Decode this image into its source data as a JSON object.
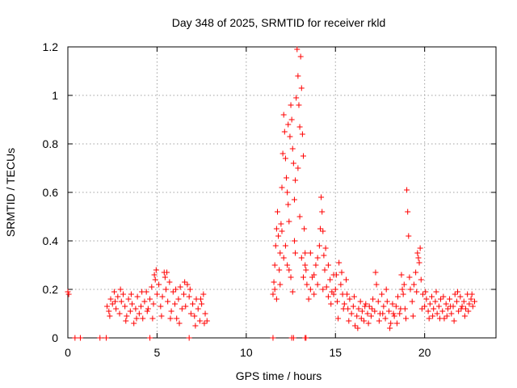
{
  "chart_data": {
    "type": "scatter",
    "title": "Day 348 of 2025, SRMTID for receiver rkld",
    "xlabel": "GPS time / hours",
    "ylabel": "SRMTID / TECUs",
    "xlim": [
      0,
      24
    ],
    "ylim": [
      0,
      1.2
    ],
    "xticks": [
      0,
      5,
      10,
      15,
      20
    ],
    "xtick_labels": [
      "0",
      "5",
      "10",
      "15",
      "20"
    ],
    "yticks": [
      0,
      0.2,
      0.4,
      0.6,
      0.8,
      1.0,
      1.2
    ],
    "ytick_labels": [
      "0",
      "0.2",
      "0.4",
      "0.6",
      "0.8",
      "1",
      "1.2"
    ],
    "grid": true,
    "marker": "plus",
    "color": "#ff0000",
    "series": [
      {
        "name": "SRMTID",
        "points": [
          [
            0.0,
            0.19
          ],
          [
            0.05,
            0.18
          ],
          [
            0.4,
            0.0
          ],
          [
            0.7,
            0.0
          ],
          [
            1.8,
            0.0
          ],
          [
            2.15,
            0.0
          ],
          [
            4.6,
            0.0
          ],
          [
            6.8,
            0.0
          ],
          [
            11.5,
            0.0
          ],
          [
            12.55,
            0.0
          ],
          [
            12.65,
            0.0
          ],
          [
            13.3,
            0.0
          ],
          [
            13.35,
            0.0
          ],
          [
            2.2,
            0.13
          ],
          [
            2.3,
            0.11
          ],
          [
            2.4,
            0.16
          ],
          [
            2.5,
            0.14
          ],
          [
            2.6,
            0.19
          ],
          [
            2.7,
            0.12
          ],
          [
            2.8,
            0.17
          ],
          [
            2.9,
            0.1
          ],
          [
            3.0,
            0.15
          ],
          [
            3.1,
            0.18
          ],
          [
            3.2,
            0.13
          ],
          [
            3.3,
            0.09
          ],
          [
            3.4,
            0.16
          ],
          [
            3.5,
            0.11
          ],
          [
            3.6,
            0.14
          ],
          [
            3.7,
            0.06
          ],
          [
            3.8,
            0.12
          ],
          [
            3.9,
            0.17
          ],
          [
            4.0,
            0.1
          ],
          [
            4.1,
            0.13
          ],
          [
            4.2,
            0.08
          ],
          [
            4.3,
            0.15
          ],
          [
            4.4,
            0.19
          ],
          [
            4.5,
            0.12
          ],
          [
            4.6,
            0.16
          ],
          [
            4.7,
            0.21
          ],
          [
            4.8,
            0.14
          ],
          [
            4.9,
            0.24
          ],
          [
            5.0,
            0.18
          ],
          [
            5.1,
            0.22
          ],
          [
            5.2,
            0.13
          ],
          [
            5.3,
            0.17
          ],
          [
            5.4,
            0.27
          ],
          [
            5.5,
            0.2
          ],
          [
            5.6,
            0.15
          ],
          [
            5.7,
            0.23
          ],
          [
            5.8,
            0.11
          ],
          [
            5.9,
            0.19
          ],
          [
            6.0,
            0.14
          ],
          [
            6.1,
            0.08
          ],
          [
            6.2,
            0.16
          ],
          [
            6.3,
            0.21
          ],
          [
            6.4,
            0.12
          ],
          [
            6.5,
            0.18
          ],
          [
            6.6,
            0.13
          ],
          [
            6.7,
            0.22
          ],
          [
            6.8,
            0.17
          ],
          [
            6.9,
            0.1
          ],
          [
            7.0,
            0.14
          ],
          [
            7.1,
            0.09
          ],
          [
            7.2,
            0.16
          ],
          [
            7.3,
            0.12
          ],
          [
            7.4,
            0.07
          ],
          [
            7.5,
            0.14
          ],
          [
            7.6,
            0.18
          ],
          [
            7.7,
            0.1
          ],
          [
            7.8,
            0.07
          ],
          [
            2.35,
            0.09
          ],
          [
            2.65,
            0.15
          ],
          [
            2.95,
            0.2
          ],
          [
            3.25,
            0.07
          ],
          [
            3.55,
            0.18
          ],
          [
            3.85,
            0.08
          ],
          [
            4.15,
            0.19
          ],
          [
            4.45,
            0.11
          ],
          [
            4.75,
            0.08
          ],
          [
            4.85,
            0.26
          ],
          [
            4.95,
            0.28
          ],
          [
            5.25,
            0.09
          ],
          [
            5.45,
            0.25
          ],
          [
            5.55,
            0.27
          ],
          [
            5.75,
            0.08
          ],
          [
            6.05,
            0.2
          ],
          [
            6.25,
            0.06
          ],
          [
            6.55,
            0.23
          ],
          [
            6.85,
            0.2
          ],
          [
            7.15,
            0.05
          ],
          [
            7.45,
            0.16
          ],
          [
            7.65,
            0.06
          ],
          [
            11.5,
            0.18
          ],
          [
            11.55,
            0.23
          ],
          [
            11.6,
            0.3
          ],
          [
            11.65,
            0.38
          ],
          [
            11.7,
            0.45
          ],
          [
            11.75,
            0.52
          ],
          [
            11.8,
            0.42
          ],
          [
            11.85,
            0.28
          ],
          [
            11.9,
            0.35
          ],
          [
            11.95,
            0.47
          ],
          [
            12.0,
            0.62
          ],
          [
            12.05,
            0.76
          ],
          [
            12.1,
            0.92
          ],
          [
            12.15,
            0.85
          ],
          [
            12.2,
            0.74
          ],
          [
            12.25,
            0.66
          ],
          [
            12.3,
            0.6
          ],
          [
            12.35,
            0.55
          ],
          [
            12.4,
            0.48
          ],
          [
            12.45,
            0.83
          ],
          [
            12.5,
            0.96
          ],
          [
            12.55,
            0.9
          ],
          [
            12.6,
            0.78
          ],
          [
            12.65,
            0.72
          ],
          [
            12.7,
            0.57
          ],
          [
            12.75,
            0.65
          ],
          [
            12.8,
            0.99
          ],
          [
            12.85,
            1.19
          ],
          [
            12.9,
            1.08
          ],
          [
            12.95,
            0.96
          ],
          [
            13.0,
            0.87
          ],
          [
            13.05,
            1.16
          ],
          [
            13.1,
            1.03
          ],
          [
            13.15,
            0.84
          ],
          [
            13.2,
            0.75
          ],
          [
            13.25,
            0.45
          ],
          [
            13.3,
            0.35
          ],
          [
            13.35,
            0.28
          ],
          [
            13.4,
            0.22
          ],
          [
            11.6,
            0.2
          ],
          [
            11.7,
            0.16
          ],
          [
            11.9,
            0.22
          ],
          [
            12.0,
            0.44
          ],
          [
            12.1,
            0.33
          ],
          [
            12.2,
            0.38
          ],
          [
            12.3,
            0.3
          ],
          [
            12.35,
            0.88
          ],
          [
            12.4,
            0.28
          ],
          [
            12.5,
            0.25
          ],
          [
            12.6,
            0.19
          ],
          [
            12.7,
            0.4
          ],
          [
            12.75,
            0.35
          ],
          [
            12.9,
            0.7
          ],
          [
            13.0,
            0.5
          ],
          [
            13.1,
            0.33
          ],
          [
            13.2,
            0.25
          ],
          [
            13.3,
            0.3
          ],
          [
            13.5,
            0.16
          ],
          [
            13.6,
            0.2
          ],
          [
            13.7,
            0.25
          ],
          [
            13.8,
            0.18
          ],
          [
            13.9,
            0.3
          ],
          [
            14.0,
            0.22
          ],
          [
            14.1,
            0.38
          ],
          [
            14.2,
            0.58
          ],
          [
            14.25,
            0.52
          ],
          [
            14.3,
            0.44
          ],
          [
            14.35,
            0.34
          ],
          [
            14.4,
            0.28
          ],
          [
            14.5,
            0.21
          ],
          [
            14.6,
            0.17
          ],
          [
            14.7,
            0.24
          ],
          [
            14.8,
            0.19
          ],
          [
            14.9,
            0.26
          ],
          [
            15.0,
            0.2
          ],
          [
            15.1,
            0.15
          ],
          [
            15.2,
            0.31
          ],
          [
            15.3,
            0.22
          ],
          [
            15.4,
            0.18
          ],
          [
            15.5,
            0.14
          ],
          [
            15.6,
            0.24
          ],
          [
            15.7,
            0.12
          ],
          [
            15.8,
            0.16
          ],
          [
            15.9,
            0.1
          ],
          [
            16.0,
            0.13
          ],
          [
            16.1,
            0.05
          ],
          [
            16.2,
            0.09
          ],
          [
            16.3,
            0.12
          ],
          [
            16.4,
            0.15
          ],
          [
            16.5,
            0.11
          ],
          [
            16.6,
            0.07
          ],
          [
            16.7,
            0.14
          ],
          [
            16.8,
            0.1
          ],
          [
            16.9,
            0.13
          ],
          [
            17.0,
            0.09
          ],
          [
            17.1,
            0.16
          ],
          [
            17.2,
            0.11
          ],
          [
            17.3,
            0.22
          ],
          [
            17.4,
            0.15
          ],
          [
            17.5,
            0.1
          ],
          [
            17.6,
            0.18
          ],
          [
            17.7,
            0.13
          ],
          [
            17.8,
            0.08
          ],
          [
            17.9,
            0.15
          ],
          [
            18.0,
            0.11
          ],
          [
            18.1,
            0.06
          ],
          [
            18.2,
            0.14
          ],
          [
            18.3,
            0.09
          ],
          [
            18.4,
            0.13
          ],
          [
            18.5,
            0.17
          ],
          [
            18.6,
            0.1
          ],
          [
            18.7,
            0.26
          ],
          [
            18.8,
            0.18
          ],
          [
            18.9,
            0.12
          ],
          [
            19.0,
            0.61
          ],
          [
            19.05,
            0.52
          ],
          [
            19.1,
            0.42
          ],
          [
            19.2,
            0.2
          ],
          [
            19.3,
            0.15
          ],
          [
            19.4,
            0.22
          ],
          [
            19.5,
            0.27
          ],
          [
            19.6,
            0.35
          ],
          [
            19.7,
            0.31
          ],
          [
            19.8,
            0.24
          ],
          [
            19.9,
            0.18
          ],
          [
            20.0,
            0.13
          ],
          [
            20.1,
            0.16
          ],
          [
            20.2,
            0.11
          ],
          [
            20.3,
            0.14
          ],
          [
            20.4,
            0.17
          ],
          [
            20.5,
            0.12
          ],
          [
            20.6,
            0.15
          ],
          [
            20.7,
            0.1
          ],
          [
            20.8,
            0.13
          ],
          [
            20.9,
            0.16
          ],
          [
            21.0,
            0.11
          ],
          [
            21.1,
            0.08
          ],
          [
            21.2,
            0.14
          ],
          [
            21.3,
            0.12
          ],
          [
            21.4,
            0.16
          ],
          [
            21.5,
            0.1
          ],
          [
            21.6,
            0.13
          ],
          [
            21.7,
            0.18
          ],
          [
            21.8,
            0.15
          ],
          [
            21.9,
            0.11
          ],
          [
            22.0,
            0.17
          ],
          [
            22.1,
            0.13
          ],
          [
            22.2,
            0.15
          ],
          [
            22.3,
            0.12
          ],
          [
            22.4,
            0.18
          ],
          [
            22.5,
            0.14
          ],
          [
            22.6,
            0.16
          ],
          [
            22.7,
            0.13
          ],
          [
            22.8,
            0.15
          ],
          [
            13.6,
            0.35
          ],
          [
            13.8,
            0.26
          ],
          [
            14.0,
            0.33
          ],
          [
            14.15,
            0.45
          ],
          [
            14.3,
            0.2
          ],
          [
            14.45,
            0.37
          ],
          [
            14.6,
            0.3
          ],
          [
            14.75,
            0.14
          ],
          [
            14.9,
            0.18
          ],
          [
            15.05,
            0.26
          ],
          [
            15.15,
            0.08
          ],
          [
            15.35,
            0.27
          ],
          [
            15.45,
            0.12
          ],
          [
            15.65,
            0.18
          ],
          [
            15.75,
            0.07
          ],
          [
            16.05,
            0.17
          ],
          [
            16.25,
            0.04
          ],
          [
            16.45,
            0.08
          ],
          [
            16.65,
            0.13
          ],
          [
            16.85,
            0.06
          ],
          [
            17.05,
            0.12
          ],
          [
            17.25,
            0.27
          ],
          [
            17.45,
            0.07
          ],
          [
            17.65,
            0.1
          ],
          [
            17.85,
            0.2
          ],
          [
            18.05,
            0.04
          ],
          [
            18.25,
            0.1
          ],
          [
            18.45,
            0.06
          ],
          [
            18.65,
            0.12
          ],
          [
            18.75,
            0.2
          ],
          [
            18.85,
            0.22
          ],
          [
            18.95,
            0.08
          ],
          [
            19.15,
            0.25
          ],
          [
            19.35,
            0.09
          ],
          [
            19.55,
            0.19
          ],
          [
            19.65,
            0.33
          ],
          [
            19.75,
            0.37
          ],
          [
            19.85,
            0.12
          ],
          [
            20.05,
            0.19
          ],
          [
            20.25,
            0.08
          ],
          [
            20.45,
            0.09
          ],
          [
            20.65,
            0.19
          ],
          [
            20.85,
            0.08
          ],
          [
            21.05,
            0.17
          ],
          [
            21.25,
            0.09
          ],
          [
            21.45,
            0.13
          ],
          [
            21.65,
            0.07
          ],
          [
            21.85,
            0.19
          ],
          [
            22.05,
            0.12
          ],
          [
            22.25,
            0.09
          ],
          [
            22.45,
            0.11
          ],
          [
            22.65,
            0.18
          ]
        ]
      }
    ]
  }
}
